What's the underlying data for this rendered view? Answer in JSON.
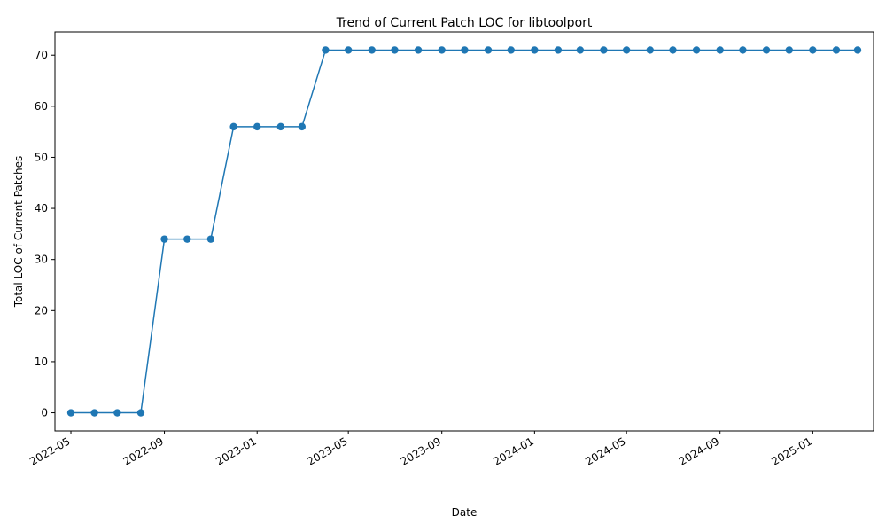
{
  "chart_data": {
    "type": "line",
    "title": "Trend of Current Patch LOC for libtoolport",
    "xlabel": "Date",
    "ylabel": "Total LOC of Current Patches",
    "x": [
      "2022-05-01",
      "2022-06-01",
      "2022-07-01",
      "2022-08-01",
      "2022-09-01",
      "2022-10-01",
      "2022-11-01",
      "2022-12-01",
      "2023-01-01",
      "2023-02-01",
      "2023-03-01",
      "2023-04-01",
      "2023-05-01",
      "2023-06-01",
      "2023-07-01",
      "2023-08-01",
      "2023-09-01",
      "2023-10-01",
      "2023-11-01",
      "2023-12-01",
      "2024-01-01",
      "2024-02-01",
      "2024-03-01",
      "2024-04-01",
      "2024-05-01",
      "2024-06-01",
      "2024-07-01",
      "2024-08-01",
      "2024-09-01",
      "2024-10-01",
      "2024-11-01",
      "2024-12-01",
      "2025-01-01",
      "2025-02-01",
      "2025-03-01"
    ],
    "series": [
      {
        "color": "#1f77b4",
        "marker": "circle",
        "values": [
          0,
          0,
          0,
          0,
          34,
          34,
          34,
          56,
          56,
          56,
          56,
          71,
          71,
          71,
          71,
          71,
          71,
          71,
          71,
          71,
          71,
          71,
          71,
          71,
          71,
          71,
          71,
          71,
          71,
          71,
          71,
          71,
          71,
          71,
          71
        ]
      }
    ],
    "ylim": [
      -3.55,
      74.55
    ],
    "xlim": [
      "2022-04-10",
      "2025-03-22"
    ],
    "yticks": [
      0,
      10,
      20,
      30,
      40,
      50,
      60,
      70
    ],
    "xticks": [
      "2022-05",
      "2022-09",
      "2023-01",
      "2023-05",
      "2023-09",
      "2024-01",
      "2024-05",
      "2024-09",
      "2025-01"
    ],
    "xtick_rotation": 30,
    "grid": false,
    "legend": "none"
  }
}
